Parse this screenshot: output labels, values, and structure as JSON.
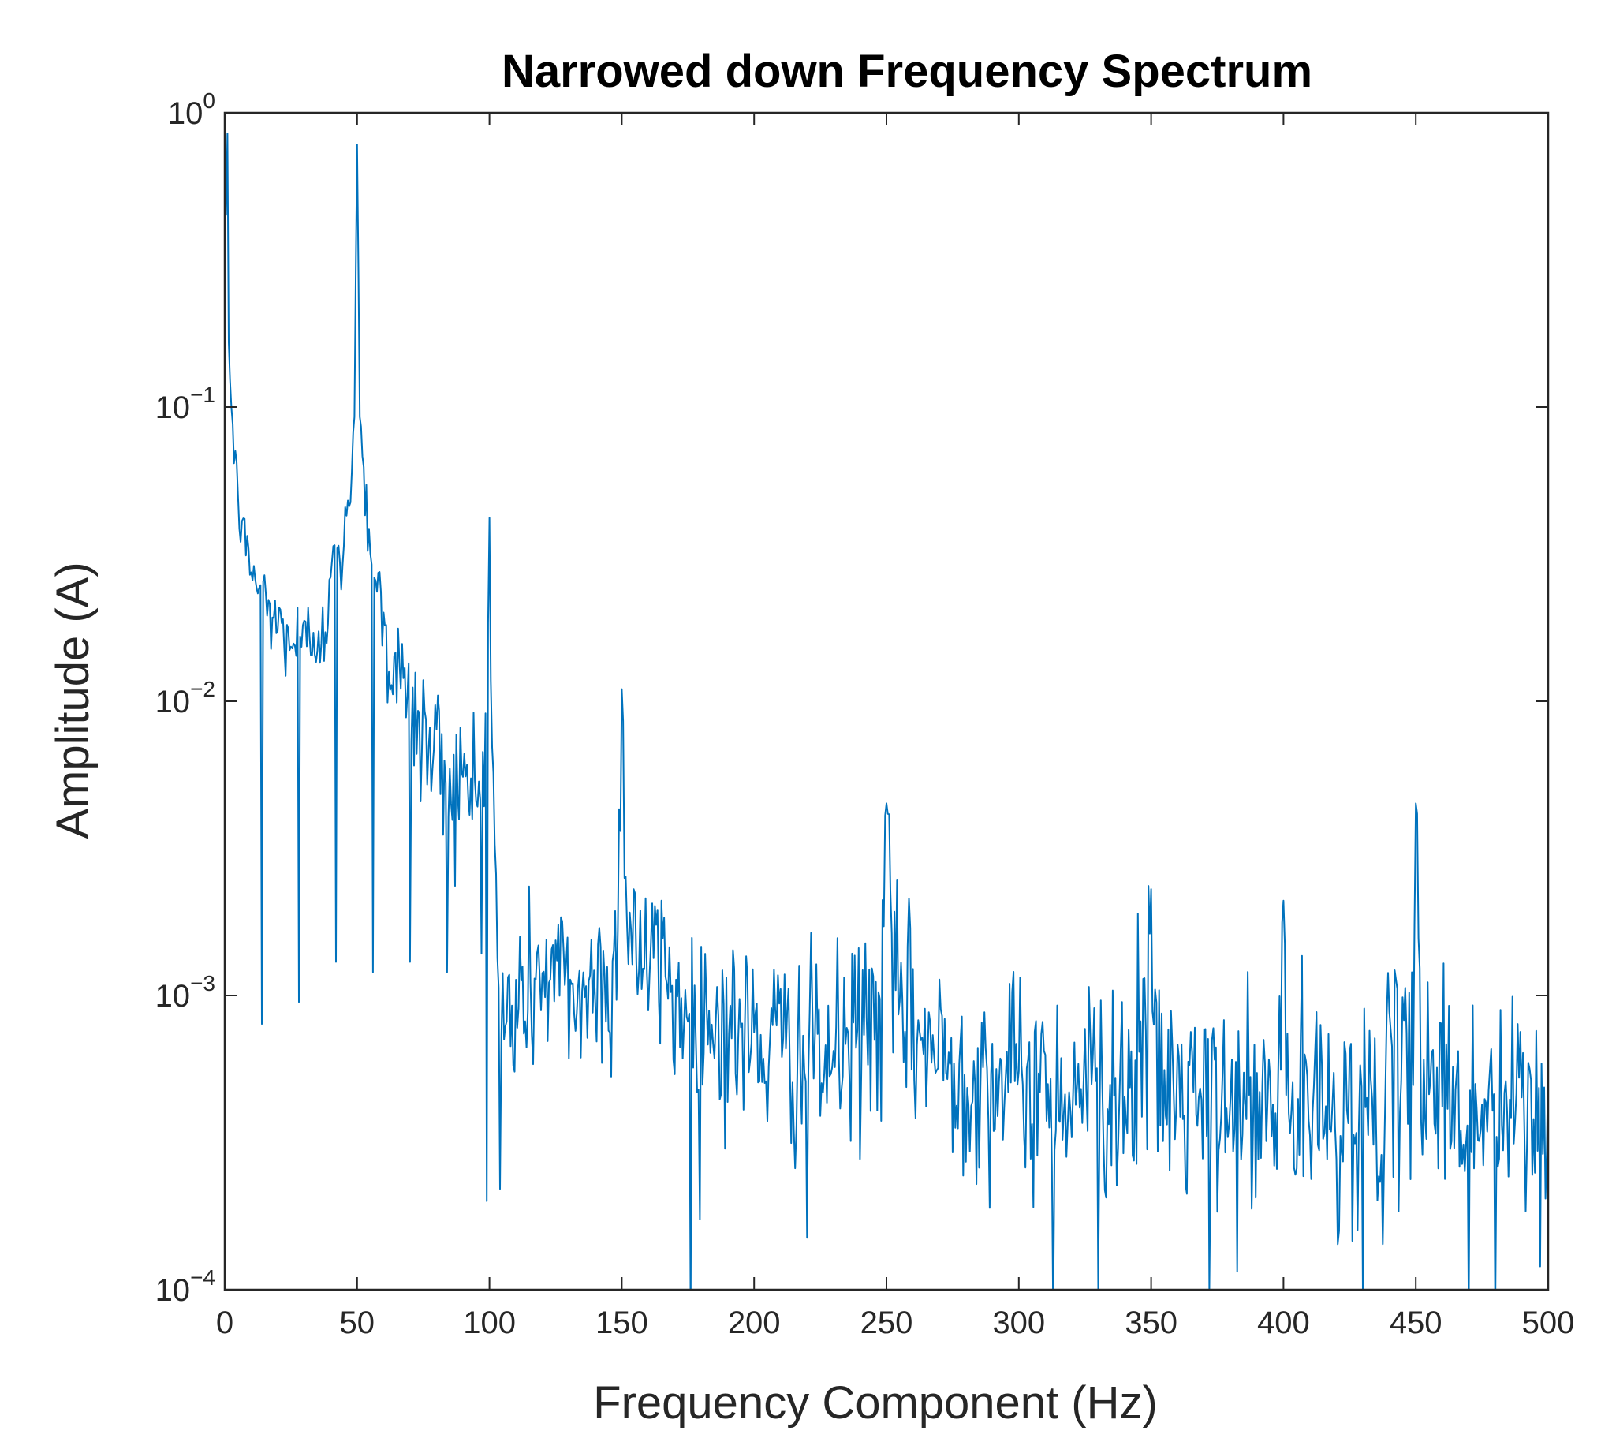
{
  "chart_data": {
    "type": "line",
    "title": "Narrowed down Frequency Spectrum",
    "xlabel": "Frequency Component (Hz)",
    "ylabel": "Amplitude (A)",
    "xlim": [
      0,
      500
    ],
    "ylim": [
      0.0001,
      1
    ],
    "yscale": "log",
    "grid": false,
    "x_ticks": [
      0,
      50,
      100,
      150,
      200,
      250,
      300,
      350,
      400,
      450,
      500
    ],
    "x_tick_labels": [
      "0",
      "50",
      "100",
      "150",
      "200",
      "250",
      "300",
      "350",
      "400",
      "450",
      "500"
    ],
    "y_ticks": [
      0.0001,
      0.001,
      0.01,
      0.1,
      1
    ],
    "y_tick_labels": [
      {
        "base": "10",
        "exp": "−4"
      },
      {
        "base": "10",
        "exp": "−3"
      },
      {
        "base": "10",
        "exp": "−2"
      },
      {
        "base": "10",
        "exp": "−1"
      },
      {
        "base": "10",
        "exp": "0"
      }
    ],
    "color": "#0072BD",
    "resolution_hz": 0.5,
    "baseline": [
      [
        0,
        0.8
      ],
      [
        1,
        0.3
      ],
      [
        2,
        0.12
      ],
      [
        4,
        0.06
      ],
      [
        7,
        0.035
      ],
      [
        12,
        0.025
      ],
      [
        20,
        0.018
      ],
      [
        30,
        0.015
      ],
      [
        38,
        0.02
      ],
      [
        44,
        0.03
      ],
      [
        47,
        0.045
      ],
      [
        49,
        0.1
      ],
      [
        50,
        0.8
      ],
      [
        51,
        0.1
      ],
      [
        53,
        0.05
      ],
      [
        56,
        0.03
      ],
      [
        62,
        0.015
      ],
      [
        70,
        0.009
      ],
      [
        80,
        0.0065
      ],
      [
        90,
        0.005
      ],
      [
        96,
        0.005
      ],
      [
        98,
        0.006
      ],
      [
        99,
        0.009
      ],
      [
        100,
        0.04
      ],
      [
        101,
        0.008
      ],
      [
        102,
        0.0025
      ],
      [
        104,
        0.0008
      ],
      [
        110,
        0.0009
      ],
      [
        120,
        0.0012
      ],
      [
        135,
        0.001
      ],
      [
        148,
        0.0012
      ],
      [
        150,
        0.01
      ],
      [
        152,
        0.002
      ],
      [
        158,
        0.0013
      ],
      [
        175,
        0.0009
      ],
      [
        200,
        0.0007
      ],
      [
        230,
        0.0006
      ],
      [
        248,
        0.0009
      ],
      [
        250,
        0.004
      ],
      [
        252,
        0.001
      ],
      [
        270,
        0.0006
      ],
      [
        300,
        0.0005
      ],
      [
        330,
        0.0005
      ],
      [
        348,
        0.0005
      ],
      [
        350,
        0.0015
      ],
      [
        352,
        0.0005
      ],
      [
        380,
        0.0004
      ],
      [
        398,
        0.0004
      ],
      [
        400,
        0.0015
      ],
      [
        402,
        0.0004
      ],
      [
        430,
        0.0004
      ],
      [
        448,
        0.0005
      ],
      [
        450,
        0.004
      ],
      [
        452,
        0.0006
      ],
      [
        470,
        0.0004
      ],
      [
        500,
        0.0004
      ]
    ],
    "noise_log_std": [
      [
        0,
        0.05
      ],
      [
        40,
        0.1
      ],
      [
        50,
        0.02
      ],
      [
        60,
        0.12
      ],
      [
        100,
        0.15
      ],
      [
        200,
        0.17
      ],
      [
        500,
        0.2
      ]
    ],
    "dips": [
      [
        14,
        0.0008
      ],
      [
        28,
        0.00095
      ],
      [
        42,
        0.0013
      ],
      [
        56,
        0.0012
      ],
      [
        70,
        0.0013
      ],
      [
        84,
        0.0012
      ],
      [
        99,
        0.0002
      ],
      [
        104,
        0.00022
      ],
      [
        176,
        5e-05
      ],
      [
        220,
        0.00015
      ],
      [
        313,
        5e-05
      ],
      [
        330,
        0.0001
      ],
      [
        372,
        0.0001
      ],
      [
        430,
        9e-05
      ],
      [
        470,
        8e-05
      ],
      [
        480,
        7e-05
      ],
      [
        497,
        0.00012
      ]
    ],
    "peaks": [
      [
        1,
        0.85
      ],
      [
        50,
        0.78
      ],
      [
        100,
        0.042
      ],
      [
        150,
        0.011
      ],
      [
        165,
        0.0021
      ],
      [
        250,
        0.0045
      ],
      [
        350,
        0.0023
      ],
      [
        345,
        0.0019
      ],
      [
        400,
        0.0021
      ],
      [
        450,
        0.0045
      ]
    ]
  }
}
